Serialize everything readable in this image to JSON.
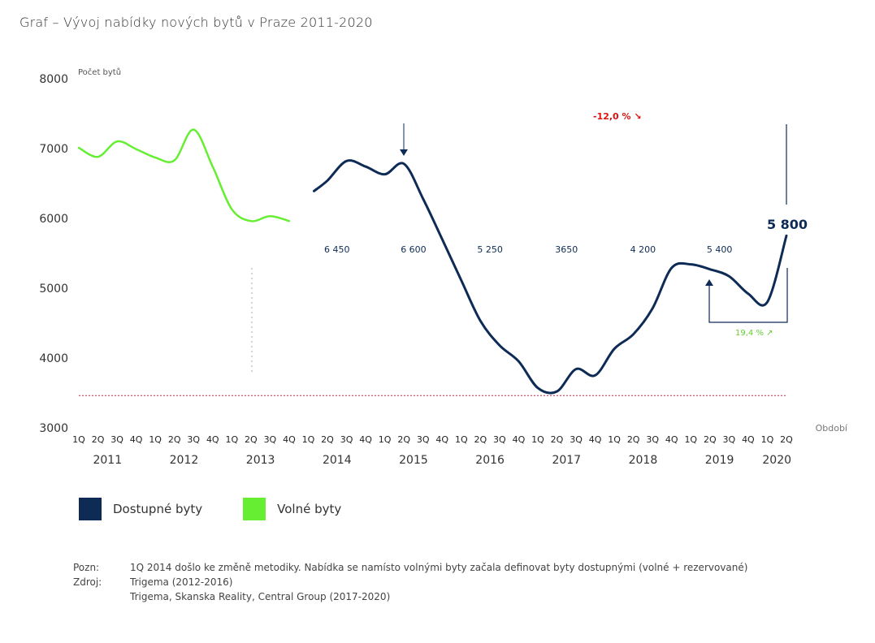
{
  "title": "Graf – Vývoj nabídky nových bytů v Praze  2011-2020",
  "chart_data": {
    "type": "line",
    "title": "Graf – Vývoj nabídky nových bytů v Praze  2011-2020",
    "ylabel": "Počet bytů",
    "xlabel": "Období",
    "ylim": [
      3000,
      8000
    ],
    "yticks": [
      3000,
      4000,
      5000,
      6000,
      7000,
      8000
    ],
    "grid": false,
    "legend_position": "bottom-left",
    "quarters": [
      "1Q",
      "2Q",
      "3Q",
      "4Q",
      "1Q",
      "2Q",
      "3Q",
      "4Q",
      "1Q",
      "2Q",
      "3Q",
      "4Q",
      "1Q",
      "2Q",
      "3Q",
      "4Q",
      "1Q",
      "2Q",
      "3Q",
      "4Q",
      "1Q",
      "2Q",
      "3Q",
      "4Q",
      "1Q",
      "2Q",
      "3Q",
      "4Q",
      "1Q",
      "2Q",
      "3Q",
      "4Q",
      "1Q",
      "2Q",
      "3Q",
      "4Q",
      "1Q",
      "2Q"
    ],
    "years": [
      {
        "label": "2011",
        "start": 0,
        "end": 3
      },
      {
        "label": "2012",
        "start": 4,
        "end": 7
      },
      {
        "label": "2013",
        "start": 8,
        "end": 11
      },
      {
        "label": "2014",
        "start": 12,
        "end": 15
      },
      {
        "label": "2015",
        "start": 16,
        "end": 19
      },
      {
        "label": "2016",
        "start": 20,
        "end": 23
      },
      {
        "label": "2017",
        "start": 24,
        "end": 27
      },
      {
        "label": "2018",
        "start": 28,
        "end": 31
      },
      {
        "label": "2019",
        "start": 32,
        "end": 35
      },
      {
        "label": "2020",
        "start": 36,
        "end": 37
      }
    ],
    "series": [
      {
        "name": "Volné byty",
        "color": "#66ee33",
        "start_index": 0,
        "values": [
          7000,
          6870,
          7090,
          6980,
          6860,
          6820,
          7260,
          6730,
          6120,
          5950,
          6020,
          5950
        ]
      },
      {
        "name": "Dostupné byty",
        "color": "#0d2b55",
        "start_index": 12,
        "values": [
          6380,
          6530,
          6810,
          6730,
          6620,
          6770,
          6270,
          5690,
          5100,
          4520,
          4170,
          3940,
          3560,
          3510,
          3830,
          3740,
          4120,
          4330,
          4700,
          5280,
          5330,
          5260,
          5160,
          4910,
          4790,
          5740
        ]
      }
    ],
    "year_annotations": [
      {
        "text": "6 450",
        "year_index": 3
      },
      {
        "text": "6 600",
        "year_index": 4
      },
      {
        "text": "5 250",
        "year_index": 5
      },
      {
        "text": "3650",
        "year_index": 6
      },
      {
        "text": "4 200",
        "year_index": 7
      },
      {
        "text": "5 400",
        "year_index": 8
      }
    ],
    "highlight_value": {
      "text": "5 800",
      "index": 37
    },
    "change_annotations": [
      {
        "text": "-12,0 %",
        "arrow": "↘",
        "color": "#dd1111"
      },
      {
        "text": "19,4 %",
        "arrow": "↗",
        "color": "#66cc33"
      }
    ],
    "reference_line": {
      "value": 3450,
      "color": "#cc2244",
      "style": "dotted"
    }
  },
  "legend": [
    {
      "label": "Dostupné byty",
      "color": "#0d2b55"
    },
    {
      "label": "Volné byty",
      "color": "#66ee33"
    }
  ],
  "notes": {
    "pozn_label": "Pozn:",
    "pozn_text": "1Q 2014 došlo ke změně metodiky. Nabídka se namísto volnými byty začala definovat byty dostupnými (volné + rezervované)",
    "zdroj_label": "Zdroj:",
    "zdroj_lines": [
      "Trigema (2012-2016)",
      "Trigema, Skanska Reality, Central Group (2017-2020)"
    ]
  }
}
